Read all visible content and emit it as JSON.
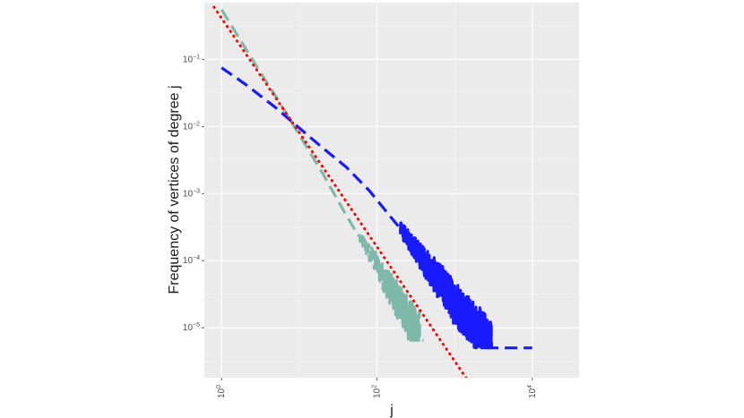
{
  "chart_data": {
    "type": "line",
    "xlabel": "j",
    "ylabel": "Frequency of vertices of degree j",
    "x_scale": "log10",
    "y_scale": "log10",
    "xlim": [
      0.6,
      40000
    ],
    "ylim": [
      1.8e-06,
      0.7
    ],
    "grid": true,
    "legend": "none",
    "x_ticks": [
      {
        "value": 1,
        "base": "10",
        "exp": "0"
      },
      {
        "value": 100,
        "base": "10",
        "exp": "2"
      },
      {
        "value": 10000,
        "base": "10",
        "exp": "4"
      }
    ],
    "y_ticks": [
      {
        "value": 0.1,
        "base": "10",
        "exp": "−1"
      },
      {
        "value": 0.01,
        "base": "10",
        "exp": "−2"
      },
      {
        "value": 0.001,
        "base": "10",
        "exp": "−3"
      },
      {
        "value": 0.0001,
        "base": "10",
        "exp": "−4"
      },
      {
        "value": 1e-05,
        "base": "10",
        "exp": "−5"
      }
    ],
    "series": [
      {
        "color": "#7db8a8",
        "style": "dashed",
        "x": [
          1,
          2,
          3,
          5,
          10,
          20,
          40,
          60,
          80,
          100,
          130,
          160,
          200,
          250,
          300,
          400
        ],
        "y": [
          0.55,
          0.15,
          0.07,
          0.028,
          0.0075,
          0.002,
          0.00048,
          0.00022,
          0.00013,
          8.5e-05,
          5e-05,
          3.3e-05,
          2.2e-05,
          1.4e-05,
          1e-05,
          6.5e-06
        ],
        "noise_start_x": 60,
        "noise_amplitude_dex": 0.35
      },
      {
        "color": "#1a1aff",
        "style": "dashed",
        "x": [
          1,
          2,
          3,
          5,
          10,
          20,
          40,
          80,
          100,
          150,
          200,
          300,
          500,
          800,
          1000,
          1500,
          2000,
          3000,
          10000
        ],
        "y": [
          0.075,
          0.043,
          0.03,
          0.019,
          0.0095,
          0.0048,
          0.0025,
          0.0011,
          0.0008,
          0.00045,
          0.0003,
          0.00016,
          7e-05,
          3.5e-05,
          2.4e-05,
          1.4e-05,
          9.5e-06,
          6e-06,
          5e-06
        ],
        "noise_start_x": 200,
        "noise_amplitude_dex": 0.35
      },
      {
        "color": "#ff0000",
        "style": "dotted",
        "x": [
          0.8,
          1500
        ],
        "y": [
          0.6,
          1.6e-06
        ]
      }
    ]
  }
}
